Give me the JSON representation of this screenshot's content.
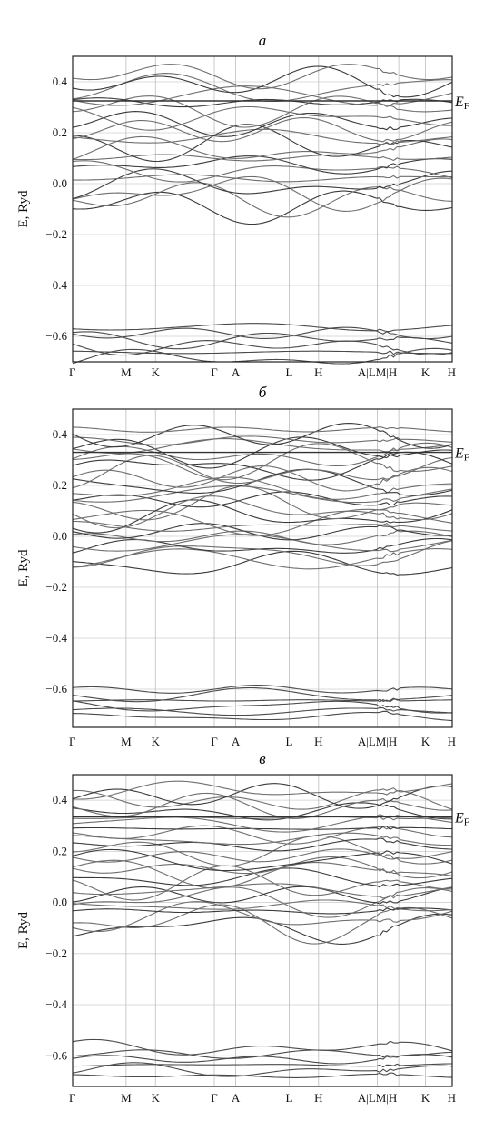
{
  "chart_data": [
    {
      "type": "line",
      "title": "а",
      "ylabel": "E, Ryd",
      "ylim": [
        -0.7,
        0.5
      ],
      "yticks": [
        0.4,
        0.2,
        0.0,
        -0.2,
        -0.4,
        -0.6
      ],
      "ytick_labels": [
        "0.4",
        "0.2",
        "0.0",
        "−0.2",
        "−0.4",
        "−0.6"
      ],
      "fermi_level": 0.325,
      "fermi_label": "E",
      "fermi_label_sub": "F",
      "kpoints": [
        {
          "label": "Γ",
          "pos": 0
        },
        {
          "label": "M",
          "pos": 1.0
        },
        {
          "label": "K",
          "pos": 1.55
        },
        {
          "label": "Γ",
          "pos": 2.65
        },
        {
          "label": "A",
          "pos": 3.05
        },
        {
          "label": "L",
          "pos": 4.05
        },
        {
          "label": "H",
          "pos": 4.6
        },
        {
          "label": "A|LM|H",
          "pos": 5.7
        },
        {
          "label": "",
          "pos": 6.1
        },
        {
          "label": "K",
          "pos": 6.6
        },
        {
          "label": "H",
          "pos": 7.1
        }
      ],
      "bands_upper_range": [
        -0.1,
        0.44
      ],
      "bands_lower_range": [
        -0.7,
        -0.55
      ],
      "band_count_upper": 20,
      "band_count_lower": 6
    },
    {
      "type": "line",
      "title": "б",
      "ylabel": "E, Ryd",
      "ylim": [
        -0.75,
        0.5
      ],
      "yticks": [
        0.4,
        0.2,
        0.0,
        -0.2,
        -0.4,
        -0.6
      ],
      "ytick_labels": [
        "0.4",
        "0.2",
        "0.0",
        "−0.2",
        "−0.4",
        "−0.6"
      ],
      "fermi_level": 0.33,
      "fermi_label": "E",
      "fermi_label_sub": "F",
      "kpoints": [
        {
          "label": "Γ",
          "pos": 0
        },
        {
          "label": "M",
          "pos": 1.0
        },
        {
          "label": "K",
          "pos": 1.55
        },
        {
          "label": "Γ",
          "pos": 2.65
        },
        {
          "label": "A",
          "pos": 3.05
        },
        {
          "label": "L",
          "pos": 4.05
        },
        {
          "label": "H",
          "pos": 4.6
        },
        {
          "label": "A|LM|H",
          "pos": 5.7
        },
        {
          "label": "",
          "pos": 6.1
        },
        {
          "label": "K",
          "pos": 6.6
        },
        {
          "label": "H",
          "pos": 7.1
        }
      ],
      "bands_upper_range": [
        -0.12,
        0.43
      ],
      "bands_lower_range": [
        -0.72,
        -0.59
      ],
      "band_count_upper": 26,
      "band_count_lower": 6
    },
    {
      "type": "line",
      "title": "в",
      "ylabel": "E, Ryd",
      "ylim": [
        -0.72,
        0.5
      ],
      "yticks": [
        0.4,
        0.2,
        0.0,
        -0.2,
        -0.4,
        -0.6
      ],
      "ytick_labels": [
        "0.4",
        "0.2",
        "0.0",
        "−0.2",
        "−0.4",
        "−0.6"
      ],
      "fermi_level": 0.335,
      "fermi_label": "E",
      "fermi_label_sub": "F",
      "kpoints": [
        {
          "label": "Γ",
          "pos": 0
        },
        {
          "label": "M",
          "pos": 1.0
        },
        {
          "label": "K",
          "pos": 1.55
        },
        {
          "label": "Γ",
          "pos": 2.65
        },
        {
          "label": "A",
          "pos": 3.05
        },
        {
          "label": "L",
          "pos": 4.05
        },
        {
          "label": "H",
          "pos": 4.6
        },
        {
          "label": "A|LM|H",
          "pos": 5.7
        },
        {
          "label": "",
          "pos": 6.1
        },
        {
          "label": "K",
          "pos": 6.6
        },
        {
          "label": "H",
          "pos": 7.1
        }
      ],
      "bands_upper_range": [
        -0.11,
        0.45
      ],
      "bands_lower_range": [
        -0.69,
        -0.56
      ],
      "band_count_upper": 26,
      "band_count_lower": 6
    }
  ]
}
